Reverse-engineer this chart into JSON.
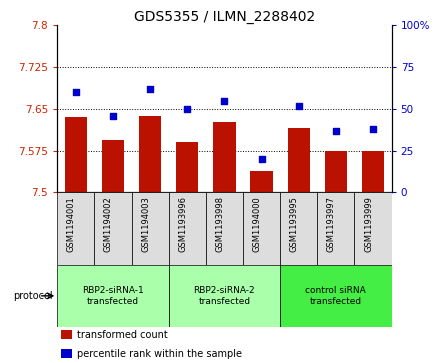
{
  "title": "GDS5355 / ILMN_2288402",
  "samples": [
    "GSM1194001",
    "GSM1194002",
    "GSM1194003",
    "GSM1193996",
    "GSM1193998",
    "GSM1194000",
    "GSM1193995",
    "GSM1193997",
    "GSM1193999"
  ],
  "bar_values": [
    7.635,
    7.595,
    7.638,
    7.59,
    7.627,
    7.538,
    7.615,
    7.575,
    7.575
  ],
  "dot_values": [
    60,
    46,
    62,
    50,
    55,
    20,
    52,
    37,
    38
  ],
  "ylim": [
    7.5,
    7.8
  ],
  "y2lim": [
    0,
    100
  ],
  "yticks": [
    7.5,
    7.575,
    7.65,
    7.725,
    7.8
  ],
  "y2ticks": [
    0,
    25,
    50,
    75,
    100
  ],
  "bar_color": "#BB1100",
  "dot_color": "#0000CC",
  "grid_color": "#000000",
  "groups": [
    {
      "label": "RBP2-siRNA-1\ntransfected",
      "start": 0,
      "end": 3,
      "color": "#AAFFAA"
    },
    {
      "label": "RBP2-siRNA-2\ntransfected",
      "start": 3,
      "end": 6,
      "color": "#AAFFAA"
    },
    {
      "label": "control siRNA\ntransfected",
      "start": 6,
      "end": 9,
      "color": "#44EE44"
    }
  ],
  "protocol_label": "protocol",
  "legend_items": [
    {
      "color": "#BB1100",
      "label": "transformed count"
    },
    {
      "color": "#0000CC",
      "label": "percentile rank within the sample"
    }
  ],
  "tick_color_left": "#CC2200",
  "tick_color_right": "#0000CC",
  "sample_box_color": "#DDDDDD",
  "title_fontsize": 10,
  "tick_fontsize": 7.5,
  "sample_fontsize": 6,
  "group_fontsize": 6.5,
  "legend_fontsize": 7
}
